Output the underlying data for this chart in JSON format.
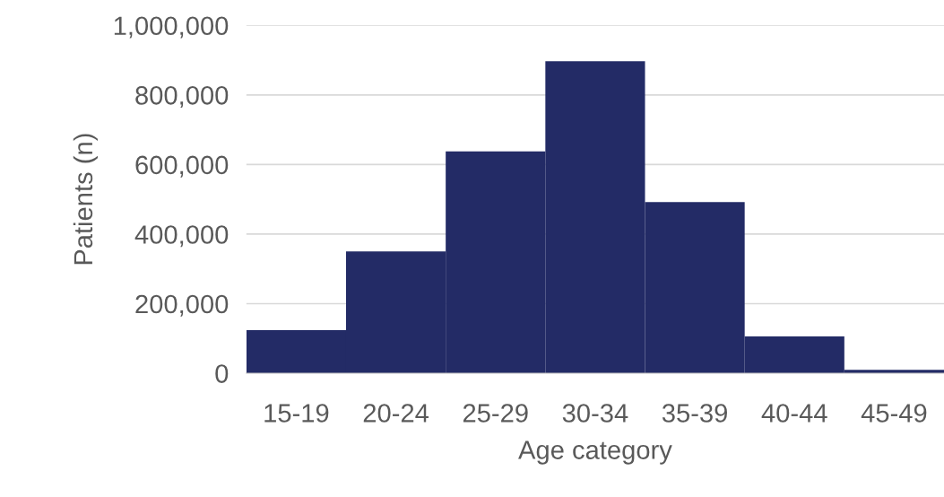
{
  "chart_data": {
    "type": "bar",
    "xlabel": "Age category",
    "ylabel": "Patients (n)",
    "categories": [
      "15-19",
      "20-24",
      "25-29",
      "30-34",
      "35-39",
      "40-44",
      "45-49"
    ],
    "values": [
      124000,
      350000,
      638000,
      897000,
      492000,
      106000,
      10000
    ],
    "color": "#232b66",
    "ylim": [
      0,
      1000000
    ],
    "yticks": [
      0,
      {
        "value": 200000,
        "label": "200,000"
      },
      {
        "value": 400000,
        "label": "400,000"
      },
      {
        "value": 600000,
        "label": "600,000"
      },
      {
        "value": 800000,
        "label": "800,000"
      },
      {
        "value": 1000000,
        "label": "1,000,000"
      }
    ],
    "grid": "y"
  }
}
